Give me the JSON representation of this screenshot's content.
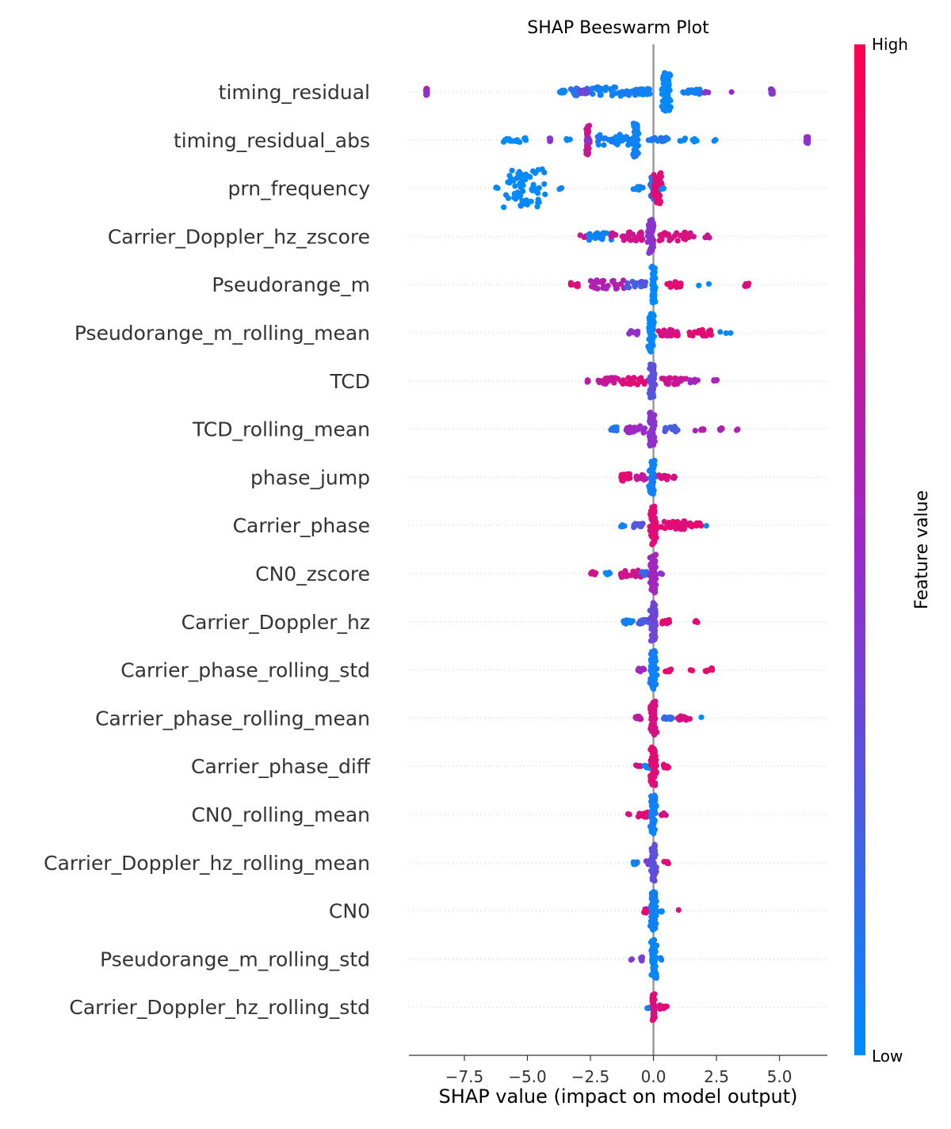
{
  "chart_data": {
    "type": "scatter",
    "subtype": "shap-beeswarm",
    "title": "SHAP Beeswarm Plot",
    "xlabel": "SHAP value (impact on model output)",
    "ylabel": "",
    "xlim": [
      -9.7,
      6.9
    ],
    "xticks": [
      -7.5,
      -5.0,
      -2.5,
      0.0,
      2.5,
      5.0
    ],
    "xtick_labels": [
      "−7.5",
      "−5.0",
      "−2.5",
      "0.0",
      "2.5",
      "5.0"
    ],
    "colorbar": {
      "title": "Feature value",
      "high_label": "High",
      "low_label": "Low",
      "low_color": "#008bfb",
      "high_color": "#ff0052",
      "mid_color": "#9b29c8"
    },
    "zero_line_color": "#999999",
    "features": [
      {
        "name": "timing_residual",
        "clusters": [
          {
            "x": -9.0,
            "n": 28,
            "c": 0.75,
            "spread": 0.02
          },
          {
            "x": -9.0,
            "n": 14,
            "c": 0.45,
            "spread": 0.02
          },
          {
            "x": -3.6,
            "n": 10,
            "c": 0.0,
            "spread": 0.15
          },
          {
            "x": -2.9,
            "n": 24,
            "c": 0.1,
            "spread": 0.5
          },
          {
            "x": -2.8,
            "n": 10,
            "c": 0.35,
            "spread": 0.2
          },
          {
            "x": -1.5,
            "n": 36,
            "c": 0.05,
            "spread": 0.8
          },
          {
            "x": -0.4,
            "n": 20,
            "c": 0.05,
            "spread": 0.3
          },
          {
            "x": 0.5,
            "n": 60,
            "c": 0.0,
            "spread": 0.15,
            "dense": true
          },
          {
            "x": 1.5,
            "n": 16,
            "c": 0.05,
            "spread": 0.4
          },
          {
            "x": 2.1,
            "n": 3,
            "c": 0.45,
            "spread": 0.1
          },
          {
            "x": 3.1,
            "n": 1,
            "c": 0.45,
            "spread": 0.0
          },
          {
            "x": 4.7,
            "n": 16,
            "c": 0.45,
            "spread": 0.05
          }
        ]
      },
      {
        "name": "timing_residual_abs",
        "clusters": [
          {
            "x": -5.5,
            "n": 14,
            "c": 0.0,
            "spread": 0.5
          },
          {
            "x": -4.1,
            "n": 8,
            "c": 0.45,
            "spread": 0.03
          },
          {
            "x": -3.3,
            "n": 3,
            "c": 0.0,
            "spread": 0.15
          },
          {
            "x": -2.6,
            "n": 34,
            "c": 0.75,
            "spread": 0.05,
            "dense": true
          },
          {
            "x": -2.6,
            "n": 10,
            "c": 0.45,
            "spread": 0.05
          },
          {
            "x": -1.5,
            "n": 40,
            "c": 0.05,
            "spread": 0.8
          },
          {
            "x": -0.7,
            "n": 40,
            "c": 0.05,
            "spread": 0.08,
            "dense": true
          },
          {
            "x": 0.2,
            "n": 14,
            "c": 0.1,
            "spread": 0.4
          },
          {
            "x": 1.3,
            "n": 8,
            "c": 0.0,
            "spread": 0.5
          },
          {
            "x": 2.4,
            "n": 2,
            "c": 0.0,
            "spread": 0.1
          },
          {
            "x": 6.1,
            "n": 20,
            "c": 0.45,
            "spread": 0.04
          }
        ]
      },
      {
        "name": "prn_frequency",
        "clusters": [
          {
            "x": -5.1,
            "n": 60,
            "c": 0.0,
            "spread": 0.8,
            "dense": true
          },
          {
            "x": -6.2,
            "n": 3,
            "c": 0.0,
            "spread": 0.1
          },
          {
            "x": -3.7,
            "n": 3,
            "c": 0.0,
            "spread": 0.1
          },
          {
            "x": -0.6,
            "n": 8,
            "c": 0.05,
            "spread": 0.2
          },
          {
            "x": 0.0,
            "n": 24,
            "c": 0.15,
            "spread": 0.1,
            "dense": true
          },
          {
            "x": 0.15,
            "n": 36,
            "c": 0.85,
            "spread": 0.15,
            "dense": true
          },
          {
            "x": 0.4,
            "n": 3,
            "c": 0.0,
            "spread": 0.1
          }
        ]
      },
      {
        "name": "Carrier_Doppler_hz_zscore",
        "clusters": [
          {
            "x": -2.8,
            "n": 6,
            "c": 0.75,
            "spread": 0.15
          },
          {
            "x": -2.1,
            "n": 24,
            "c": 0.05,
            "spread": 0.5
          },
          {
            "x": -1.0,
            "n": 30,
            "c": 0.75,
            "spread": 0.7
          },
          {
            "x": -0.1,
            "n": 40,
            "c": 0.45,
            "spread": 0.1,
            "dense": true
          },
          {
            "x": 0.9,
            "n": 30,
            "c": 0.8,
            "spread": 0.7
          },
          {
            "x": 2.1,
            "n": 5,
            "c": 0.7,
            "spread": 0.2
          }
        ]
      },
      {
        "name": "Pseudorange_m",
        "clusters": [
          {
            "x": -3.1,
            "n": 8,
            "c": 0.85,
            "spread": 0.2
          },
          {
            "x": -1.8,
            "n": 30,
            "c": 0.6,
            "spread": 0.7
          },
          {
            "x": -0.7,
            "n": 20,
            "c": 0.25,
            "spread": 0.4
          },
          {
            "x": 0.0,
            "n": 44,
            "c": 0.0,
            "spread": 0.05,
            "dense": true
          },
          {
            "x": 0.8,
            "n": 16,
            "c": 0.85,
            "spread": 0.3
          },
          {
            "x": 1.8,
            "n": 1,
            "c": 0.0,
            "spread": 0.0
          },
          {
            "x": 2.2,
            "n": 1,
            "c": 0.0,
            "spread": 0.0
          },
          {
            "x": 3.7,
            "n": 8,
            "c": 0.85,
            "spread": 0.1
          }
        ]
      },
      {
        "name": "Pseudorange_m_rolling_mean",
        "clusters": [
          {
            "x": -0.8,
            "n": 12,
            "c": 0.45,
            "spread": 0.2
          },
          {
            "x": -0.1,
            "n": 50,
            "c": 0.0,
            "spread": 0.1,
            "dense": true
          },
          {
            "x": 0.6,
            "n": 20,
            "c": 0.8,
            "spread": 0.4
          },
          {
            "x": 1.8,
            "n": 20,
            "c": 0.85,
            "spread": 0.5
          },
          {
            "x": 2.8,
            "n": 3,
            "c": 0.0,
            "spread": 0.3
          }
        ]
      },
      {
        "name": "TCD",
        "clusters": [
          {
            "x": -2.6,
            "n": 4,
            "c": 0.65,
            "spread": 0.1
          },
          {
            "x": -1.8,
            "n": 20,
            "c": 0.7,
            "spread": 0.4
          },
          {
            "x": -0.8,
            "n": 24,
            "c": 0.85,
            "spread": 0.6
          },
          {
            "x": -0.05,
            "n": 40,
            "c": 0.3,
            "spread": 0.1,
            "dense": true
          },
          {
            "x": 0.8,
            "n": 24,
            "c": 0.7,
            "spread": 0.5
          },
          {
            "x": 1.6,
            "n": 8,
            "c": 0.55,
            "spread": 0.2
          },
          {
            "x": 2.5,
            "n": 4,
            "c": 0.55,
            "spread": 0.15
          }
        ]
      },
      {
        "name": "TCD_rolling_mean",
        "clusters": [
          {
            "x": -1.5,
            "n": 10,
            "c": 0.1,
            "spread": 0.2
          },
          {
            "x": -0.7,
            "n": 24,
            "c": 0.5,
            "spread": 0.4
          },
          {
            "x": -0.05,
            "n": 40,
            "c": 0.45,
            "spread": 0.1,
            "dense": true
          },
          {
            "x": 0.7,
            "n": 14,
            "c": 0.25,
            "spread": 0.3
          },
          {
            "x": 1.7,
            "n": 6,
            "c": 0.6,
            "spread": 0.3
          },
          {
            "x": 2.7,
            "n": 6,
            "c": 0.6,
            "spread": 0.1
          },
          {
            "x": 3.3,
            "n": 2,
            "c": 0.6,
            "spread": 0.05
          }
        ]
      },
      {
        "name": "phase_jump",
        "clusters": [
          {
            "x": -1.1,
            "n": 24,
            "c": 0.85,
            "spread": 0.2
          },
          {
            "x": -0.5,
            "n": 14,
            "c": 0.7,
            "spread": 0.2
          },
          {
            "x": -0.05,
            "n": 40,
            "c": 0.05,
            "spread": 0.1,
            "dense": true
          },
          {
            "x": 0.4,
            "n": 14,
            "c": 0.8,
            "spread": 0.2
          },
          {
            "x": 0.8,
            "n": 4,
            "c": 0.8,
            "spread": 0.05
          }
        ]
      },
      {
        "name": "Carrier_phase",
        "clusters": [
          {
            "x": -1.2,
            "n": 6,
            "c": 0.05,
            "spread": 0.1
          },
          {
            "x": -0.6,
            "n": 14,
            "c": 0.3,
            "spread": 0.2
          },
          {
            "x": 0.0,
            "n": 50,
            "c": 0.85,
            "spread": 0.1,
            "dense": true
          },
          {
            "x": 0.8,
            "n": 30,
            "c": 0.85,
            "spread": 0.5
          },
          {
            "x": 1.6,
            "n": 14,
            "c": 0.85,
            "spread": 0.3
          },
          {
            "x": 2.1,
            "n": 1,
            "c": 0.0,
            "spread": 0.0
          }
        ]
      },
      {
        "name": "CN0_zscore",
        "clusters": [
          {
            "x": -2.4,
            "n": 10,
            "c": 0.75,
            "spread": 0.1
          },
          {
            "x": -1.8,
            "n": 4,
            "c": 0.0,
            "spread": 0.1
          },
          {
            "x": -0.9,
            "n": 24,
            "c": 0.75,
            "spread": 0.4
          },
          {
            "x": -0.3,
            "n": 10,
            "c": 0.2,
            "spread": 0.2
          },
          {
            "x": 0.0,
            "n": 50,
            "c": 0.55,
            "spread": 0.1,
            "dense": true
          },
          {
            "x": 0.3,
            "n": 3,
            "c": 0.45,
            "spread": 0.05
          }
        ]
      },
      {
        "name": "Carrier_Doppler_hz",
        "clusters": [
          {
            "x": -1.0,
            "n": 10,
            "c": 0.05,
            "spread": 0.2
          },
          {
            "x": -0.4,
            "n": 12,
            "c": 0.25,
            "spread": 0.2
          },
          {
            "x": 0.0,
            "n": 50,
            "c": 0.35,
            "spread": 0.1,
            "dense": true
          },
          {
            "x": 0.5,
            "n": 10,
            "c": 0.85,
            "spread": 0.15
          },
          {
            "x": 1.7,
            "n": 3,
            "c": 0.85,
            "spread": 0.05
          }
        ]
      },
      {
        "name": "Carrier_phase_rolling_std",
        "clusters": [
          {
            "x": -0.5,
            "n": 8,
            "c": 0.55,
            "spread": 0.15
          },
          {
            "x": 0.0,
            "n": 50,
            "c": 0.05,
            "spread": 0.1,
            "dense": true
          },
          {
            "x": 0.6,
            "n": 8,
            "c": 0.85,
            "spread": 0.15
          },
          {
            "x": 1.5,
            "n": 2,
            "c": 0.85,
            "spread": 0.05
          },
          {
            "x": 2.2,
            "n": 8,
            "c": 0.85,
            "spread": 0.15
          }
        ]
      },
      {
        "name": "Carrier_phase_rolling_mean",
        "clusters": [
          {
            "x": -0.6,
            "n": 10,
            "c": 0.65,
            "spread": 0.15
          },
          {
            "x": 0.0,
            "n": 40,
            "c": 0.8,
            "spread": 0.1,
            "dense": true
          },
          {
            "x": 0.6,
            "n": 10,
            "c": 0.15,
            "spread": 0.2
          },
          {
            "x": 1.2,
            "n": 12,
            "c": 0.8,
            "spread": 0.25
          },
          {
            "x": 1.9,
            "n": 1,
            "c": 0.0,
            "spread": 0.0
          }
        ]
      },
      {
        "name": "Carrier_phase_diff",
        "clusters": [
          {
            "x": -0.6,
            "n": 6,
            "c": 0.75,
            "spread": 0.1
          },
          {
            "x": -0.2,
            "n": 12,
            "c": 0.05,
            "spread": 0.15
          },
          {
            "x": 0.0,
            "n": 50,
            "c": 0.85,
            "spread": 0.1,
            "dense": true
          },
          {
            "x": 0.5,
            "n": 8,
            "c": 0.85,
            "spread": 0.1
          }
        ]
      },
      {
        "name": "CN0_rolling_mean",
        "clusters": [
          {
            "x": -1.0,
            "n": 2,
            "c": 0.85,
            "spread": 0.05
          },
          {
            "x": -0.4,
            "n": 14,
            "c": 0.85,
            "spread": 0.2
          },
          {
            "x": 0.0,
            "n": 50,
            "c": 0.05,
            "spread": 0.1,
            "dense": true
          },
          {
            "x": 0.4,
            "n": 6,
            "c": 0.8,
            "spread": 0.1
          }
        ]
      },
      {
        "name": "Carrier_Doppler_hz_rolling_mean",
        "clusters": [
          {
            "x": -0.7,
            "n": 8,
            "c": 0.05,
            "spread": 0.1
          },
          {
            "x": -0.2,
            "n": 10,
            "c": 0.4,
            "spread": 0.1
          },
          {
            "x": 0.0,
            "n": 44,
            "c": 0.3,
            "spread": 0.1,
            "dense": true
          },
          {
            "x": 0.5,
            "n": 6,
            "c": 0.85,
            "spread": 0.1
          }
        ]
      },
      {
        "name": "CN0",
        "clusters": [
          {
            "x": -0.3,
            "n": 10,
            "c": 0.85,
            "spread": 0.15
          },
          {
            "x": 0.0,
            "n": 50,
            "c": 0.05,
            "spread": 0.1,
            "dense": true
          },
          {
            "x": 0.3,
            "n": 3,
            "c": 0.05,
            "spread": 0.05
          },
          {
            "x": 1.0,
            "n": 1,
            "c": 0.85,
            "spread": 0.0
          }
        ]
      },
      {
        "name": "Pseudorange_m_rolling_std",
        "clusters": [
          {
            "x": -0.9,
            "n": 2,
            "c": 0.45,
            "spread": 0.05
          },
          {
            "x": -0.4,
            "n": 10,
            "c": 0.35,
            "spread": 0.1
          },
          {
            "x": 0.0,
            "n": 50,
            "c": 0.02,
            "spread": 0.1,
            "dense": true
          },
          {
            "x": 0.3,
            "n": 3,
            "c": 0.05,
            "spread": 0.05
          }
        ]
      },
      {
        "name": "Carrier_Doppler_hz_rolling_std",
        "clusters": [
          {
            "x": -0.2,
            "n": 3,
            "c": 0.1,
            "spread": 0.05
          },
          {
            "x": 0.0,
            "n": 30,
            "c": 0.8,
            "spread": 0.05,
            "dense": true
          },
          {
            "x": 0.4,
            "n": 12,
            "c": 0.85,
            "spread": 0.2
          }
        ]
      }
    ]
  }
}
